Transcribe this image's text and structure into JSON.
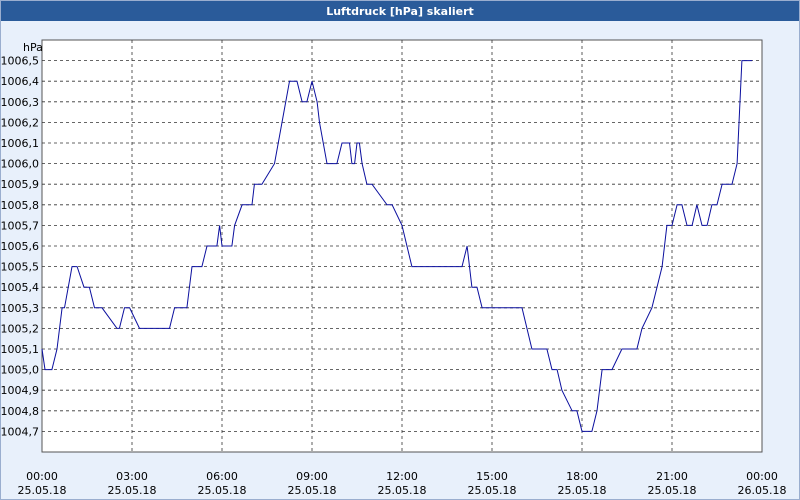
{
  "window": {
    "title": "Luftdruck [hPa] skaliert"
  },
  "chart_data": {
    "type": "line",
    "title": "Luftdruck [hPa] skaliert",
    "ylabel": "hPa",
    "xlabel": "",
    "ylim": [
      1004.6,
      1006.6
    ],
    "xlim": [
      0,
      24
    ],
    "grid": true,
    "line_color": "#0b0f9e",
    "yticks": [
      "1004,7",
      "1004,8",
      "1004,9",
      "1005,0",
      "1005,1",
      "1005,2",
      "1005,3",
      "1005,4",
      "1005,5",
      "1005,6",
      "1005,7",
      "1005,8",
      "1005,9",
      "1006,0",
      "1006,1",
      "1006,2",
      "1006,3",
      "1006,4",
      "1006,5"
    ],
    "xticks": [
      {
        "time": "00:00",
        "date": "25.05.18"
      },
      {
        "time": "03:00",
        "date": "25.05.18"
      },
      {
        "time": "06:00",
        "date": "25.05.18"
      },
      {
        "time": "09:00",
        "date": "25.05.18"
      },
      {
        "time": "12:00",
        "date": "25.05.18"
      },
      {
        "time": "15:00",
        "date": "25.05.18"
      },
      {
        "time": "18:00",
        "date": "25.05.18"
      },
      {
        "time": "21:00",
        "date": "25.05.18"
      },
      {
        "time": "00:00",
        "date": "26.05.18"
      }
    ],
    "series": [
      {
        "x": [
          0,
          0.1,
          0.33,
          0.5,
          0.67,
          0.75,
          1.0,
          1.17,
          1.4,
          1.58,
          1.75,
          2.0,
          2.5,
          2.58,
          2.75,
          2.92,
          3.25,
          3.42,
          4.25,
          4.42,
          4.83,
          5.0,
          5.33,
          5.5,
          5.83,
          5.92,
          6.0,
          6.33,
          6.42,
          6.67,
          7.0,
          7.08,
          7.33,
          7.75,
          8.0,
          8.25,
          8.5,
          8.67,
          8.83,
          9.0,
          9.17,
          9.25,
          9.5,
          9.83,
          10.0,
          10.25,
          10.33,
          10.42,
          10.5,
          10.58,
          10.67,
          10.83,
          11.0,
          11.5,
          11.67,
          12.0,
          12.33,
          12.67,
          13.0,
          13.5,
          14.0,
          14.17,
          14.33,
          14.5,
          14.67,
          15.0,
          16.0,
          16.33,
          16.83,
          17.0,
          17.17,
          17.33,
          17.67,
          17.83,
          18.0,
          18.17,
          18.33,
          18.5,
          18.67,
          19.0,
          19.33,
          19.5,
          19.83,
          20.0,
          20.33,
          20.5,
          20.67,
          20.83,
          21.0,
          21.17,
          21.33,
          21.5,
          21.67,
          21.83,
          22.0,
          22.17,
          22.33,
          22.5,
          22.67,
          23.0,
          23.17,
          23.33,
          23.67
        ],
        "y": [
          1005.1,
          1005.0,
          1005.0,
          1005.1,
          1005.3,
          1005.3,
          1005.5,
          1005.5,
          1005.4,
          1005.4,
          1005.3,
          1005.3,
          1005.2,
          1005.2,
          1005.3,
          1005.3,
          1005.2,
          1005.2,
          1005.2,
          1005.3,
          1005.3,
          1005.5,
          1005.5,
          1005.6,
          1005.6,
          1005.7,
          1005.6,
          1005.6,
          1005.7,
          1005.8,
          1005.8,
          1005.9,
          1005.9,
          1006.0,
          1006.2,
          1006.4,
          1006.4,
          1006.3,
          1006.3,
          1006.4,
          1006.3,
          1006.2,
          1006.0,
          1006.0,
          1006.1,
          1006.1,
          1006.0,
          1006.0,
          1006.1,
          1006.1,
          1006.0,
          1005.9,
          1005.9,
          1005.8,
          1005.8,
          1005.7,
          1005.5,
          1005.5,
          1005.5,
          1005.5,
          1005.5,
          1005.6,
          1005.4,
          1005.4,
          1005.3,
          1005.3,
          1005.3,
          1005.1,
          1005.1,
          1005.0,
          1005.0,
          1004.9,
          1004.8,
          1004.8,
          1004.7,
          1004.7,
          1004.7,
          1004.8,
          1005.0,
          1005.0,
          1005.1,
          1005.1,
          1005.1,
          1005.2,
          1005.3,
          1005.4,
          1005.5,
          1005.7,
          1005.7,
          1005.8,
          1005.8,
          1005.7,
          1005.7,
          1005.8,
          1005.7,
          1005.7,
          1005.8,
          1005.8,
          1005.9,
          1005.9,
          1006.0,
          1006.5,
          1006.5
        ]
      }
    ]
  }
}
